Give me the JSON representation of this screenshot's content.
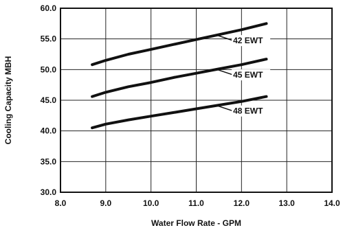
{
  "chart_data": {
    "type": "line",
    "title": "",
    "xlabel": "Water Flow Rate - GPM",
    "ylabel": "Cooling Capacity MBH",
    "xlim": [
      8.0,
      14.0
    ],
    "ylim": [
      30.0,
      60.0
    ],
    "xticks": [
      "8.0",
      "9.0",
      "10.0",
      "11.0",
      "12.0",
      "13.0",
      "14.0"
    ],
    "yticks": [
      "30.0",
      "35.0",
      "40.0",
      "45.0",
      "50.0",
      "55.0",
      "60.0"
    ],
    "grid": true,
    "legend": "none",
    "series": [
      {
        "name": "42 EWT",
        "x": [
          8.7,
          9.0,
          9.5,
          10.0,
          10.5,
          11.0,
          11.5,
          12.0,
          12.55
        ],
        "y": [
          50.8,
          51.5,
          52.5,
          53.3,
          54.1,
          54.9,
          55.7,
          56.5,
          57.5
        ]
      },
      {
        "name": "45 EWT",
        "x": [
          8.7,
          9.0,
          9.5,
          10.0,
          10.5,
          11.0,
          11.5,
          12.0,
          12.55
        ],
        "y": [
          45.6,
          46.3,
          47.2,
          47.9,
          48.7,
          49.4,
          50.1,
          50.8,
          51.7
        ]
      },
      {
        "name": "48 EWT",
        "x": [
          8.7,
          9.0,
          9.5,
          10.0,
          10.5,
          11.0,
          11.5,
          12.0,
          12.55
        ],
        "y": [
          40.5,
          41.1,
          41.8,
          42.4,
          43.0,
          43.6,
          44.2,
          44.8,
          45.6
        ]
      }
    ]
  }
}
